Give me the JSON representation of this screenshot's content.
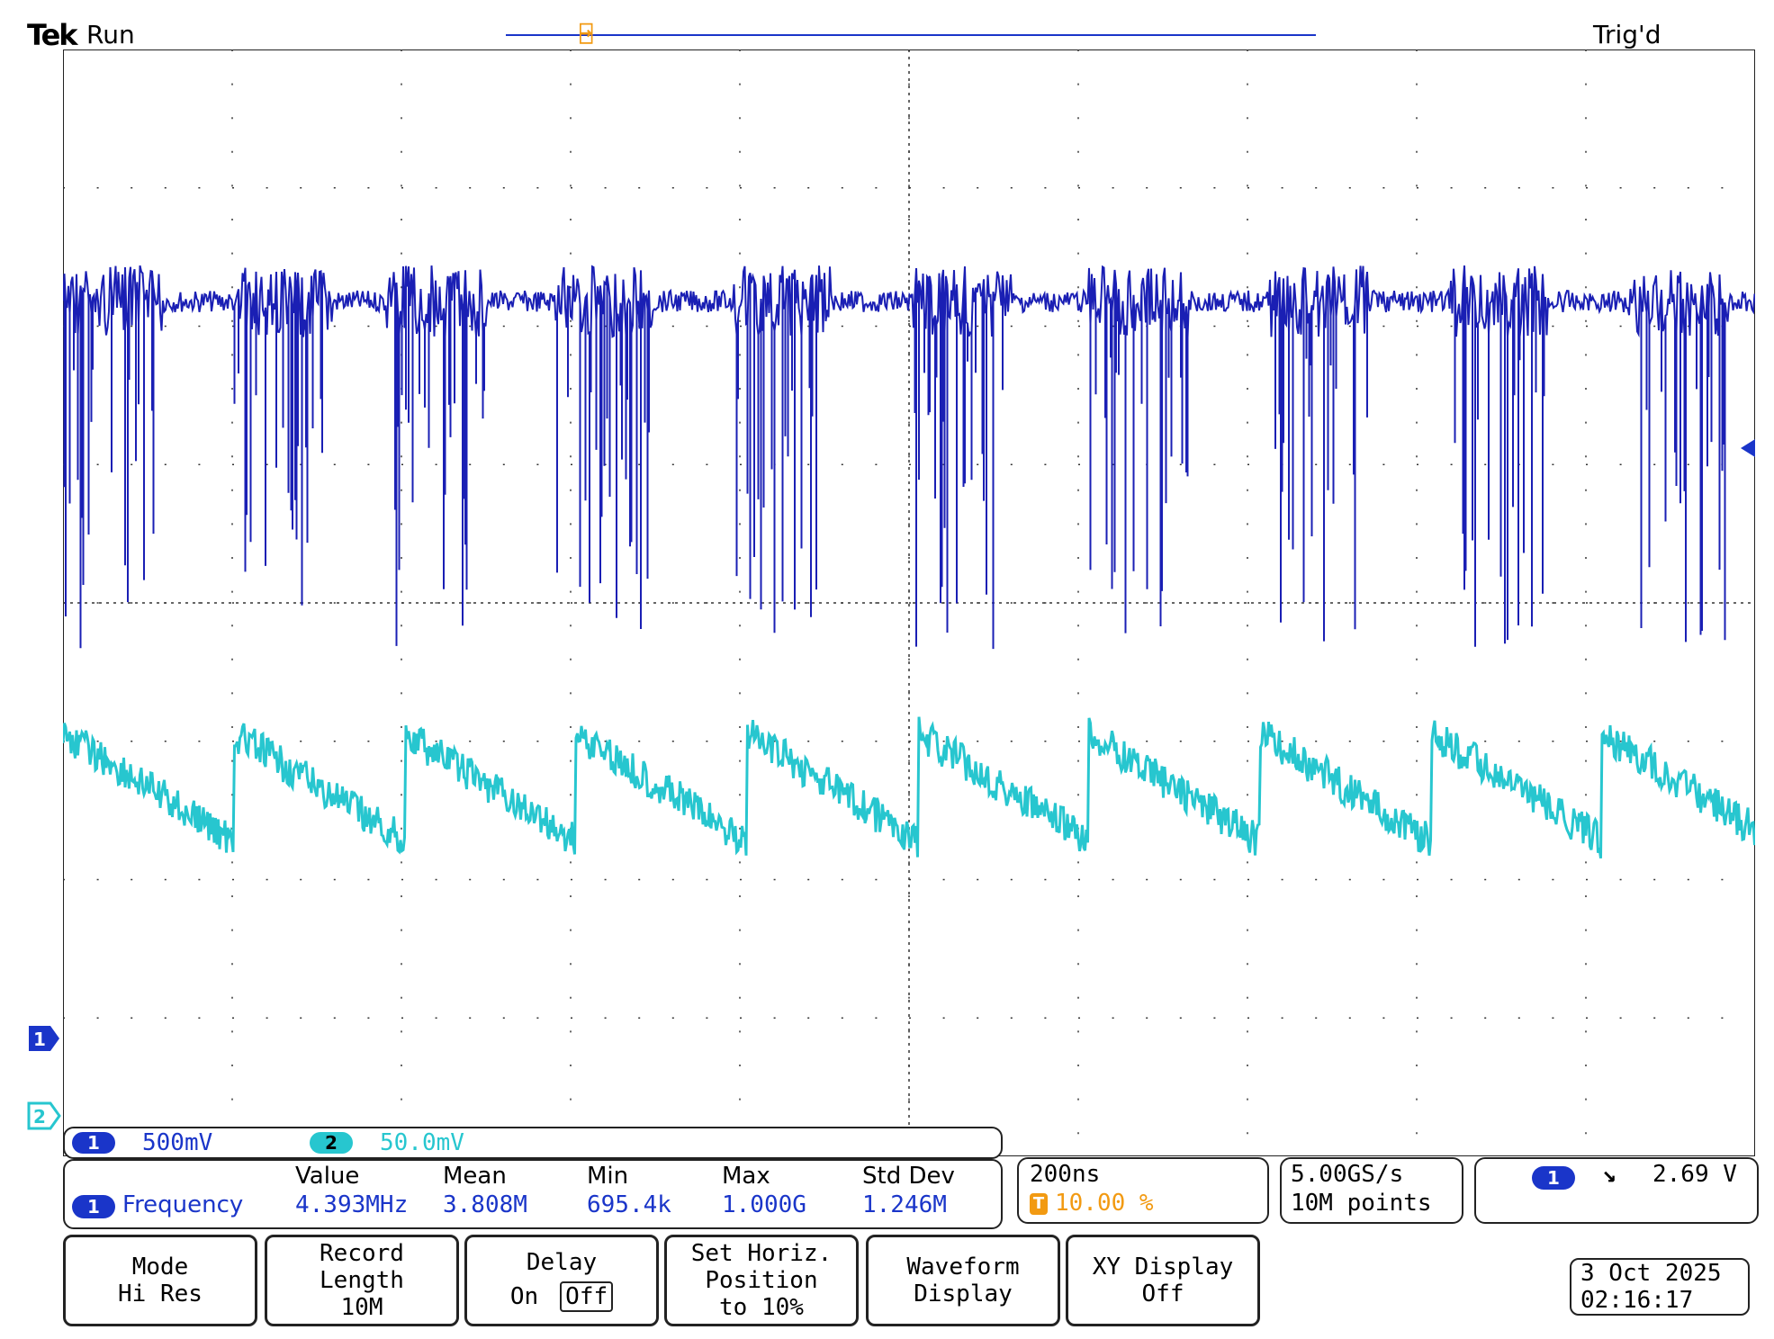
{
  "header": {
    "brand": "Tek",
    "run_state": "Run",
    "trigger_state": "Trig'd"
  },
  "markers": {
    "trigger_position_label": "T",
    "channel1_label": "1",
    "channel2_label": "2"
  },
  "colors": {
    "channel1": "#1a1fb4",
    "channel2": "#27c6cf",
    "trigger": "#f29a12",
    "grid": "#333333"
  },
  "channels": [
    {
      "id": "1",
      "scale": "500mV"
    },
    {
      "id": "2",
      "scale": "50.0mV"
    }
  ],
  "measurement": {
    "channel": "1",
    "name": "Frequency",
    "headers": [
      "Value",
      "Mean",
      "Min",
      "Max",
      "Std Dev"
    ],
    "values": [
      "4.393MHz",
      "3.808M",
      "695.4k",
      "1.000G",
      "1.246M"
    ]
  },
  "timebase": {
    "scale": "200ns",
    "trigger_icon": "T",
    "position": "10.00 %"
  },
  "acquisition": {
    "sample_rate": "5.00GS/s",
    "record": "10M points"
  },
  "trigger": {
    "source": "1",
    "slope_icon": "falling-edge-icon",
    "slope_glyph": "↘",
    "level": "2.69 V"
  },
  "softkeys": [
    {
      "line1": "Mode",
      "line2": "Hi Res",
      "line3": ""
    },
    {
      "line1": "Record",
      "line2": "Length",
      "line3": "10M"
    },
    {
      "line1": "Delay",
      "line2": "On",
      "line3": "Off"
    },
    {
      "line1": "Set Horiz.",
      "line2": "Position",
      "line3": "to 10%"
    },
    {
      "line1": "Waveform",
      "line2": "Display",
      "line3": ""
    },
    {
      "line1": "XY Display",
      "line2": "Off",
      "line3": ""
    }
  ],
  "datetime": {
    "date": "3 Oct  2025",
    "time": "02:16:17"
  }
}
